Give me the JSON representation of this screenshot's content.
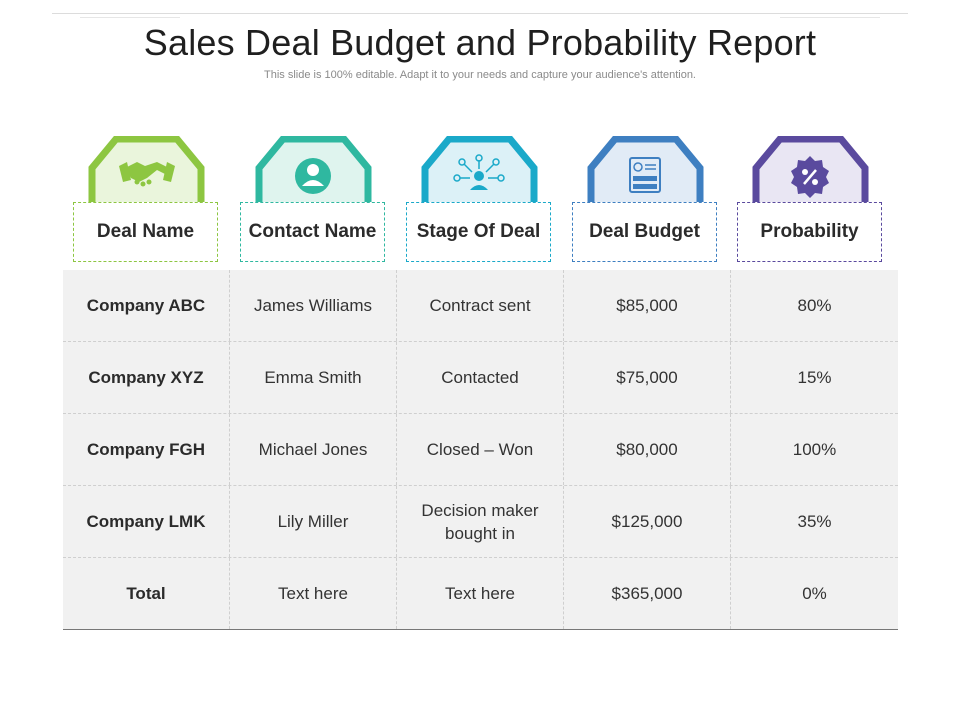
{
  "title": "Sales Deal Budget and Probability Report",
  "subtitle": "This slide is 100% editable. Adapt it to your needs and capture your audience's attention.",
  "columns": [
    {
      "label": "Deal Name",
      "icon": "handshake-icon",
      "color": "#8dc641",
      "fill": "#eaf5dc"
    },
    {
      "label": "Contact Name",
      "icon": "person-icon",
      "color": "#2fb8a0",
      "fill": "#dff4ee"
    },
    {
      "label": "Stage Of Deal",
      "icon": "network-person-icon",
      "color": "#1aa9c9",
      "fill": "#dcf1f7"
    },
    {
      "label": "Deal Budget",
      "icon": "invoice-money-icon",
      "color": "#3e7fc1",
      "fill": "#e1ebf6"
    },
    {
      "label": "Probability",
      "icon": "percent-badge-icon",
      "color": "#5a4a9e",
      "fill": "#e9e6f3"
    }
  ],
  "rows": [
    [
      "Company ABC",
      "James Williams",
      "Contract sent",
      "$85,000",
      "80%"
    ],
    [
      "Company XYZ",
      "Emma Smith",
      "Contacted",
      "$75,000",
      "15%"
    ],
    [
      "Company FGH",
      "Michael Jones",
      "Closed – Won",
      "$80,000",
      "100%"
    ],
    [
      "Company LMK",
      "Lily Miller",
      "Decision maker bought in",
      "$125,000",
      "35%"
    ],
    [
      "Total",
      "Text here",
      "Text here",
      "$365,000",
      "0%"
    ]
  ]
}
